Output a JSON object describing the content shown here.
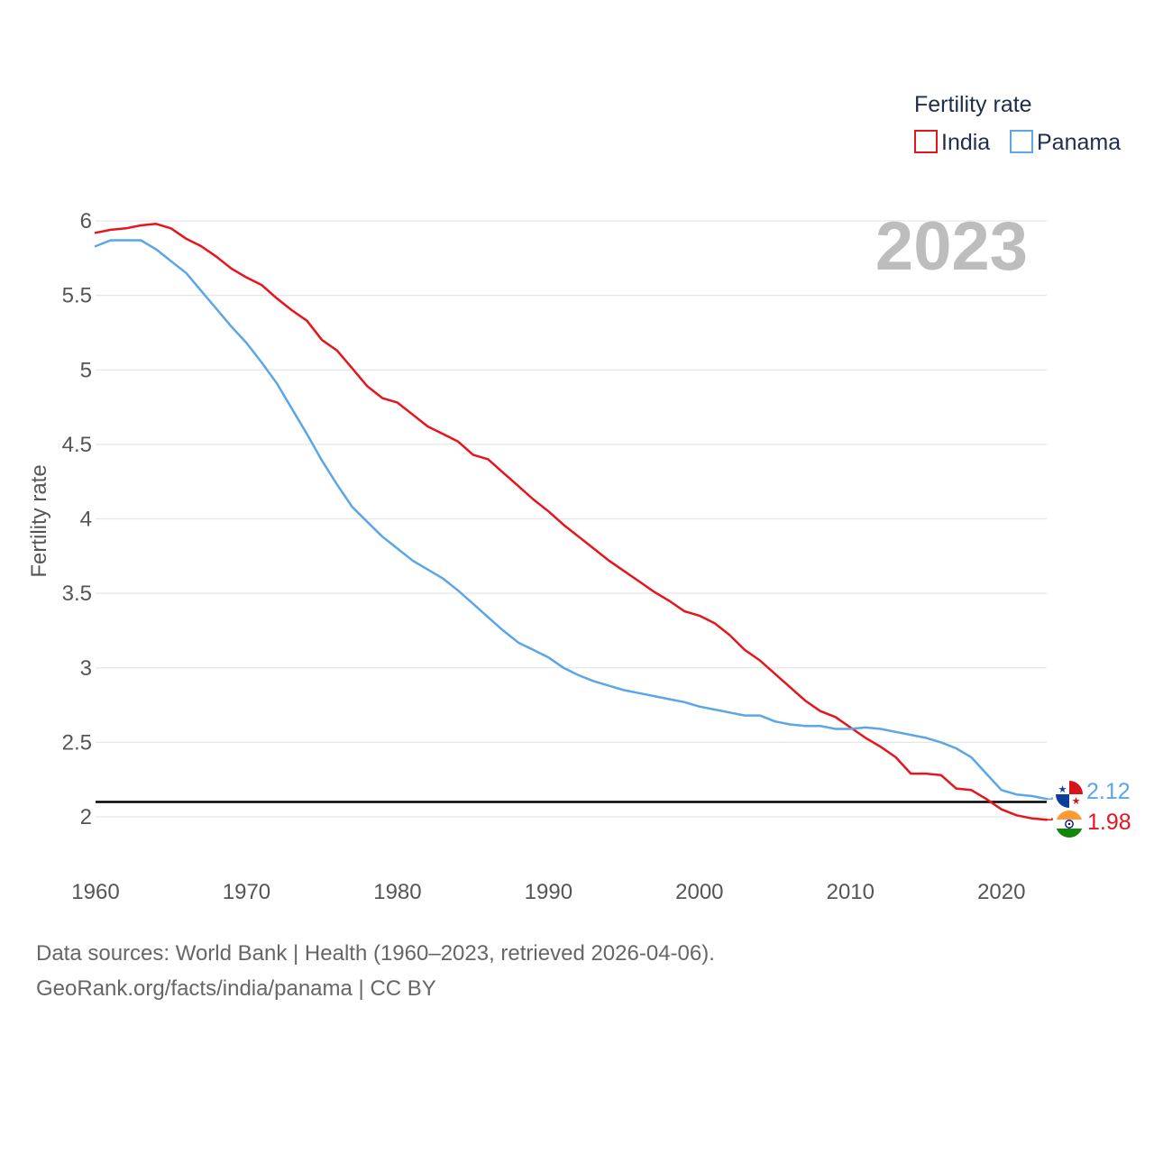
{
  "chart_data": {
    "type": "line",
    "title": "Fertility rate",
    "ylabel": "Fertility rate",
    "xlabel": "",
    "year_label": "2023",
    "xlim": [
      1960,
      2023
    ],
    "ylim": [
      1.75,
      6.05
    ],
    "x_ticks": [
      1960,
      1970,
      1980,
      1990,
      2000,
      2010,
      2020
    ],
    "y_ticks": [
      2,
      2.5,
      3,
      3.5,
      4,
      4.5,
      5,
      5.5,
      6
    ],
    "y_tick_labels": [
      "2",
      "2.5",
      "3",
      "3.5",
      "4",
      "4.5",
      "5",
      "5.5",
      "6"
    ],
    "x_tick_labels": [
      "1960",
      "1970",
      "1980",
      "1990",
      "2000",
      "2010",
      "2020"
    ],
    "reference_line": 2.1,
    "x": [
      1960,
      1961,
      1962,
      1963,
      1964,
      1965,
      1966,
      1967,
      1968,
      1969,
      1970,
      1971,
      1972,
      1973,
      1974,
      1975,
      1976,
      1977,
      1978,
      1979,
      1980,
      1981,
      1982,
      1983,
      1984,
      1985,
      1986,
      1987,
      1988,
      1989,
      1990,
      1991,
      1992,
      1993,
      1994,
      1995,
      1996,
      1997,
      1998,
      1999,
      2000,
      2001,
      2002,
      2003,
      2004,
      2005,
      2006,
      2007,
      2008,
      2009,
      2010,
      2011,
      2012,
      2013,
      2014,
      2015,
      2016,
      2017,
      2018,
      2019,
      2020,
      2021,
      2022,
      2023
    ],
    "series": [
      {
        "name": "India",
        "color": "#e8141b",
        "end_label": "1.98",
        "values": [
          5.92,
          5.94,
          5.95,
          5.97,
          5.98,
          5.95,
          5.88,
          5.83,
          5.76,
          5.68,
          5.62,
          5.57,
          5.48,
          5.4,
          5.33,
          5.2,
          5.13,
          5.01,
          4.89,
          4.81,
          4.78,
          4.7,
          4.62,
          4.57,
          4.52,
          4.43,
          4.4,
          4.31,
          4.22,
          4.13,
          4.05,
          3.96,
          3.88,
          3.8,
          3.72,
          3.65,
          3.58,
          3.51,
          3.45,
          3.38,
          3.35,
          3.3,
          3.22,
          3.12,
          3.05,
          2.96,
          2.87,
          2.78,
          2.71,
          2.67,
          2.6,
          2.53,
          2.47,
          2.4,
          2.29,
          2.29,
          2.28,
          2.19,
          2.18,
          2.12,
          2.05,
          2.01,
          1.99,
          1.98
        ]
      },
      {
        "name": "Panama",
        "color": "#5aa6e6",
        "end_label": "2.12",
        "values": [
          5.83,
          5.87,
          5.87,
          5.87,
          5.81,
          5.73,
          5.65,
          5.53,
          5.41,
          5.29,
          5.18,
          5.05,
          4.91,
          4.74,
          4.57,
          4.39,
          4.23,
          4.08,
          3.98,
          3.88,
          3.8,
          3.72,
          3.66,
          3.6,
          3.52,
          3.43,
          3.34,
          3.25,
          3.17,
          3.12,
          3.07,
          3.0,
          2.95,
          2.91,
          2.88,
          2.85,
          2.83,
          2.81,
          2.79,
          2.77,
          2.74,
          2.72,
          2.7,
          2.68,
          2.68,
          2.64,
          2.62,
          2.61,
          2.61,
          2.59,
          2.59,
          2.6,
          2.59,
          2.57,
          2.55,
          2.53,
          2.5,
          2.46,
          2.4,
          2.29,
          2.18,
          2.15,
          2.14,
          2.12
        ]
      }
    ],
    "legend": {
      "title": "Fertility rate",
      "position": "top-right",
      "entries": [
        "India",
        "Panama"
      ]
    }
  },
  "footer": {
    "line1": "Data sources: World Bank | Health (1960–2023, retrieved 2026-04-06).",
    "line2": "GeoRank.org/facts/india/panama | CC BY"
  }
}
